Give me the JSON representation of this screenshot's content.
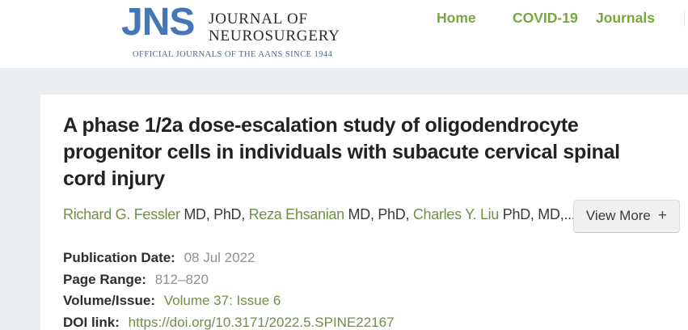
{
  "header": {
    "logo": {
      "acronym": "JNS",
      "name_line1": "JOURNAL OF",
      "name_line2": "NEUROSURGERY",
      "tagline": "OFFICIAL JOURNALS OF THE AANS SINCE 1944"
    },
    "nav": {
      "home": "Home",
      "covid": "COVID-19",
      "journals": "Journals"
    }
  },
  "article": {
    "title_lines": [
      "A phase 1/2a dose-escalation study of oligodendrocyte",
      "progenitor cells in individuals with subacute cervical spinal",
      "cord injury"
    ],
    "authors": [
      {
        "name": "Richard G. Fessler",
        "degrees": " MD, PhD, "
      },
      {
        "name": "Reza Ehsanian",
        "degrees": " MD, PhD, "
      },
      {
        "name": "Charles Y. Liu",
        "degrees": " PhD, MD,..."
      }
    ],
    "view_more": {
      "label": "View More",
      "icon": "+"
    },
    "meta": {
      "publication_date": {
        "label": "Publication Date:",
        "value": "08 Jul 2022"
      },
      "page_range": {
        "label": "Page Range:",
        "value": "812–820"
      },
      "volume_issue": {
        "label": "Volume/Issue:",
        "value": "Volume 37: Issue 6"
      },
      "doi": {
        "label": "DOI link:",
        "value": "https://doi.org/10.3171/2022.5.SPINE22167"
      }
    }
  },
  "colors": {
    "logo_blue": "#4576b8",
    "logo_tagline_blue": "#44699f",
    "nav_green": "#79a63e",
    "link_green": "#6f8f4a",
    "author_link_green": "#6d9048",
    "muted_value_gray_green": "#8c948a",
    "page_background": "#ebeff1",
    "card_background": "#ffffff"
  }
}
